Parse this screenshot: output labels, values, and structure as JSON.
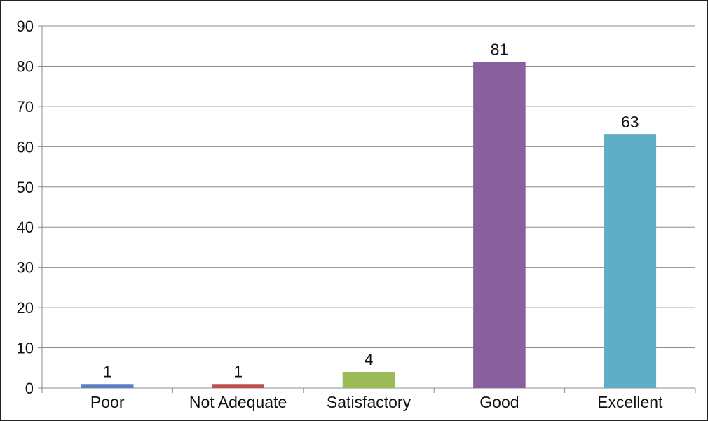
{
  "chart_data": {
    "type": "bar",
    "categories": [
      "Poor",
      "Not Adequate",
      "Satisfactory",
      "Good",
      "Excellent"
    ],
    "values": [
      1,
      1,
      4,
      81,
      63
    ],
    "data_labels": [
      "1",
      "1",
      "4",
      "81",
      "63"
    ],
    "colors": [
      "#5B7FC4",
      "#C0504D",
      "#9BBB59",
      "#8A5F9E",
      "#5FAEC8"
    ],
    "title": "",
    "xlabel": "",
    "ylabel": "",
    "ylim": [
      0,
      90
    ],
    "yticks": [
      0,
      10,
      20,
      30,
      40,
      50,
      60,
      70,
      80,
      90
    ],
    "ytick_labels": [
      "0",
      "10",
      "20",
      "30",
      "40",
      "50",
      "60",
      "70",
      "80",
      "90"
    ],
    "grid": true,
    "legend": "none"
  }
}
